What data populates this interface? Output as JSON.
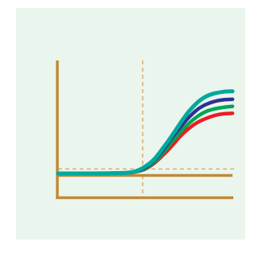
{
  "colors": {
    "background": "#eaf5ee",
    "axis": "#c08a35",
    "guide": "#d99a4a"
  },
  "chart_data": {
    "type": "line",
    "title": "",
    "xlabel": "",
    "ylabel": "",
    "xlim": [
      0,
      100
    ],
    "ylim": [
      0,
      100
    ],
    "grid": false,
    "legend": "none",
    "threshold_x": 48.5,
    "threshold_y": 4.5,
    "baseline_y": -2,
    "x": [
      0,
      10,
      20,
      30,
      40,
      45,
      50,
      55,
      60,
      65,
      70,
      75,
      80,
      85,
      90,
      95,
      100
    ],
    "series": [
      {
        "color": "#00a99d",
        "values": [
          0,
          0,
          0,
          0.2,
          0.8,
          2.5,
          7,
          14,
          25,
          37,
          50,
          62,
          71,
          77,
          80,
          81.5,
          82
        ]
      },
      {
        "color": "#2e3192",
        "values": [
          0,
          0,
          0,
          0.2,
          0.8,
          2.3,
          6,
          13,
          23,
          35,
          46,
          56,
          64,
          69,
          72,
          73.5,
          74
        ]
      },
      {
        "color": "#00a651",
        "values": [
          0,
          0,
          0,
          0.2,
          0.7,
          2.0,
          5,
          11,
          20,
          31,
          41,
          50,
          57,
          62,
          64.5,
          66,
          67
        ]
      },
      {
        "color": "#ed1c24",
        "values": [
          0,
          0,
          0,
          0.2,
          0.6,
          1.8,
          4.5,
          10,
          18,
          27,
          37,
          45,
          51,
          55,
          58,
          59.5,
          60
        ]
      }
    ]
  }
}
